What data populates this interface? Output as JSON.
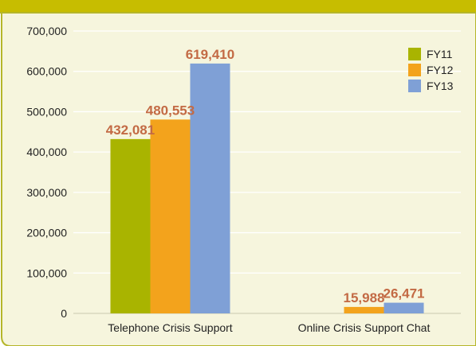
{
  "colors": {
    "top_band": "#c7bd00",
    "panel_bg": "#f6f5dd",
    "panel_border": "#b5b62a",
    "grid": "#ffffff",
    "axis_text": "#222222",
    "data_label": "#c36a44"
  },
  "chart_data": {
    "type": "bar",
    "categories": [
      "Telephone Crisis Support",
      "Online Crisis Support Chat"
    ],
    "series": [
      {
        "name": "FY11",
        "color": "#a9b400",
        "values": [
          432081,
          null
        ],
        "labels": [
          "432,081",
          ""
        ]
      },
      {
        "name": "FY12",
        "color": "#f3a31c",
        "values": [
          480553,
          15988
        ],
        "labels": [
          "480,553",
          "15,988"
        ]
      },
      {
        "name": "FY13",
        "color": "#7fa0d6",
        "values": [
          619410,
          26471
        ],
        "labels": [
          "619,410",
          "26,471"
        ]
      }
    ],
    "ylim": [
      0,
      700000
    ],
    "y_ticks": [
      0,
      100000,
      200000,
      300000,
      400000,
      500000,
      600000,
      700000
    ],
    "y_tick_labels": [
      "0",
      "100,000",
      "200,000",
      "300,000",
      "400,000",
      "500,000",
      "600,000",
      "700,000"
    ],
    "grid": true,
    "legend_position": "top-right"
  }
}
